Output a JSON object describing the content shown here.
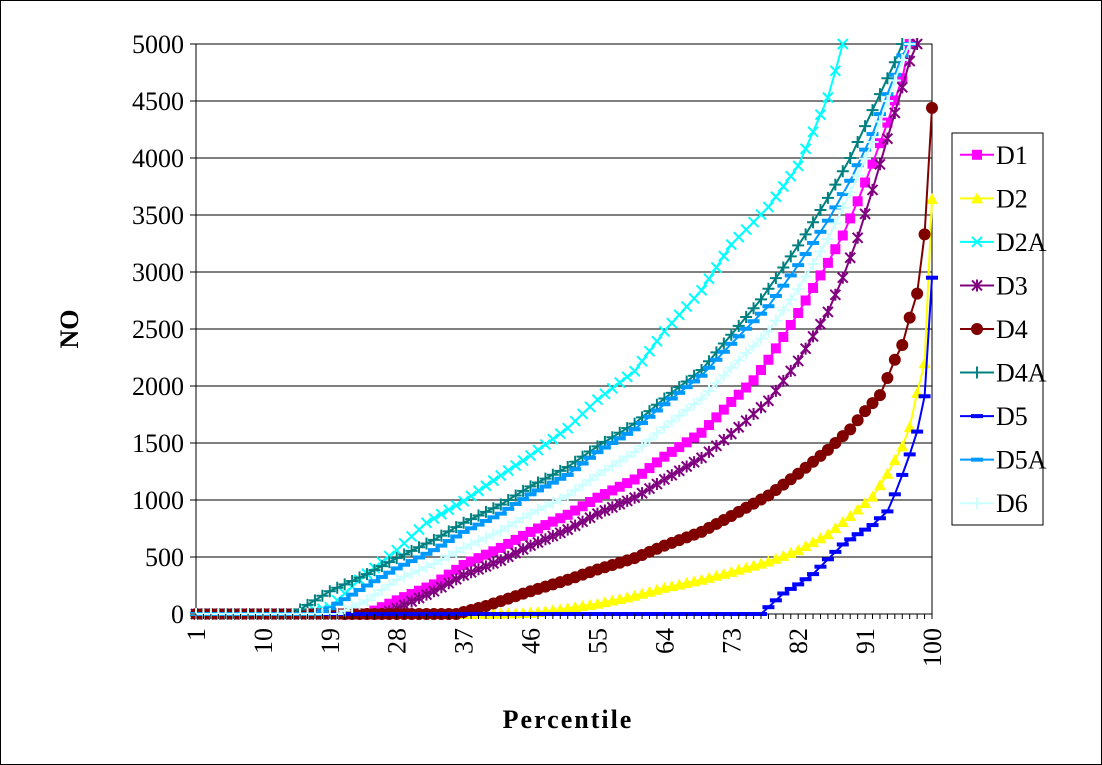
{
  "chart_data": {
    "type": "line",
    "xlabel": "Percentile",
    "ylabel": "NO",
    "xlim": [
      1,
      100
    ],
    "ylim": [
      0,
      5000
    ],
    "x_ticks": [
      1,
      10,
      19,
      28,
      37,
      46,
      55,
      64,
      73,
      82,
      91,
      100
    ],
    "y_ticks": [
      0,
      500,
      1000,
      1500,
      2000,
      2500,
      3000,
      3500,
      4000,
      4500,
      5000
    ],
    "grid": "horizontal",
    "legend_position": "right",
    "series": [
      {
        "name": "D1",
        "color": "#FF00FF",
        "marker": "square",
        "x": [
          1,
          24,
          28,
          33,
          37,
          42,
          46,
          51,
          55,
          60,
          64,
          69,
          73,
          76,
          78,
          80,
          82,
          84,
          86,
          88,
          90,
          92,
          94,
          96,
          97
        ],
        "y": [
          0,
          0,
          120,
          260,
          430,
          580,
          720,
          870,
          1020,
          1180,
          1380,
          1590,
          1860,
          2050,
          2230,
          2430,
          2640,
          2860,
          3080,
          3320,
          3620,
          3950,
          4310,
          4700,
          5000
        ]
      },
      {
        "name": "D2",
        "color": "#FFFF00",
        "marker": "triangle",
        "x": [
          1,
          40,
          46,
          50,
          55,
          60,
          64,
          69,
          73,
          78,
          82,
          86,
          89,
          92,
          94,
          96,
          97,
          98,
          99,
          100
        ],
        "y": [
          0,
          0,
          10,
          40,
          90,
          160,
          230,
          300,
          370,
          460,
          560,
          700,
          860,
          1030,
          1230,
          1470,
          1640,
          1940,
          2200,
          3640
        ]
      },
      {
        "name": "D2A",
        "color": "#00FFFF",
        "marker": "x",
        "x": [
          1,
          15,
          19,
          23,
          28,
          32,
          37,
          41,
          46,
          51,
          55,
          60,
          64,
          69,
          73,
          78,
          82,
          86,
          88
        ],
        "y": [
          0,
          0,
          60,
          300,
          560,
          800,
          990,
          1170,
          1390,
          1630,
          1880,
          2130,
          2480,
          2840,
          3240,
          3570,
          3930,
          4530,
          5000
        ]
      },
      {
        "name": "D3",
        "color": "#800080",
        "marker": "star",
        "x": [
          1,
          26,
          28,
          33,
          37,
          42,
          46,
          51,
          55,
          60,
          64,
          69,
          73,
          78,
          82,
          86,
          88,
          90,
          92,
          94,
          96,
          97,
          98
        ],
        "y": [
          0,
          0,
          50,
          200,
          340,
          470,
          600,
          740,
          880,
          1020,
          1180,
          1370,
          1580,
          1870,
          2220,
          2650,
          2950,
          3300,
          3720,
          4170,
          4620,
          4850,
          5000
        ]
      },
      {
        "name": "D4",
        "color": "#800000",
        "marker": "circle",
        "x": [
          1,
          36,
          40,
          46,
          51,
          55,
          60,
          64,
          69,
          73,
          78,
          82,
          86,
          89,
          91,
          93,
          94,
          95,
          96,
          97,
          98,
          99,
          100
        ],
        "y": [
          0,
          0,
          70,
          200,
          300,
          390,
          490,
          600,
          720,
          860,
          1040,
          1230,
          1440,
          1620,
          1780,
          1920,
          2070,
          2230,
          2360,
          2600,
          2810,
          3330,
          4440
        ]
      },
      {
        "name": "D4A",
        "color": "#008080",
        "marker": "plus",
        "x": [
          1,
          14,
          19,
          24,
          28,
          33,
          37,
          42,
          46,
          51,
          55,
          60,
          64,
          69,
          73,
          77,
          80,
          83,
          86,
          89,
          91,
          93,
          95,
          96,
          97
        ],
        "y": [
          0,
          0,
          200,
          350,
          490,
          650,
          800,
          960,
          1120,
          1290,
          1470,
          1670,
          1890,
          2140,
          2450,
          2760,
          3040,
          3330,
          3650,
          4000,
          4280,
          4560,
          4840,
          5000,
          5000
        ]
      },
      {
        "name": "D5",
        "color": "#0000FF",
        "marker": "dash",
        "x": [
          1,
          77,
          78,
          80,
          82,
          84,
          86,
          88,
          90,
          92,
          94,
          95,
          96,
          97,
          98,
          99,
          100
        ],
        "y": [
          0,
          0,
          60,
          180,
          260,
          350,
          480,
          610,
          700,
          780,
          900,
          1050,
          1220,
          1400,
          1600,
          1910,
          2950
        ]
      },
      {
        "name": "D5A",
        "color": "#0099FF",
        "marker": "dash",
        "x": [
          1,
          17,
          19,
          24,
          28,
          33,
          37,
          42,
          46,
          51,
          55,
          60,
          64,
          69,
          73,
          78,
          82,
          86,
          89,
          92,
          94,
          96,
          97
        ],
        "y": [
          0,
          0,
          50,
          250,
          400,
          560,
          720,
          880,
          1050,
          1220,
          1420,
          1620,
          1840,
          2090,
          2370,
          2700,
          3060,
          3450,
          3800,
          4210,
          4560,
          4900,
          5000
        ]
      },
      {
        "name": "D6",
        "color": "#CCFFFF",
        "marker": "plus",
        "x": [
          1,
          20,
          24,
          28,
          33,
          37,
          42,
          46,
          51,
          55,
          60,
          64,
          69,
          73,
          78,
          82,
          86,
          89,
          92,
          94,
          96,
          97
        ],
        "y": [
          0,
          0,
          120,
          300,
          440,
          580,
          730,
          880,
          1040,
          1220,
          1420,
          1640,
          1890,
          2160,
          2480,
          2850,
          3290,
          3700,
          4140,
          4500,
          4860,
          5000
        ]
      }
    ]
  }
}
